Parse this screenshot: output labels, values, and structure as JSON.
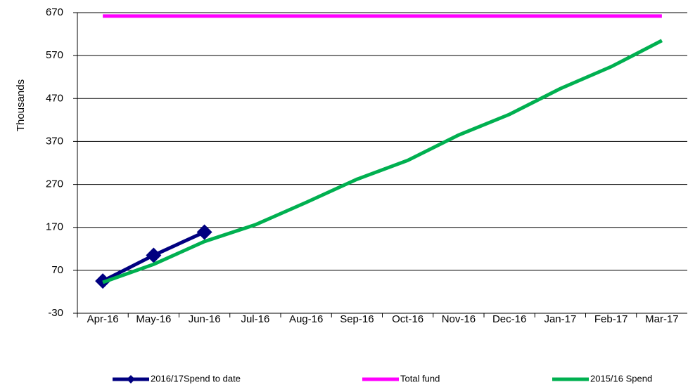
{
  "chart_data": {
    "type": "line",
    "ylabel": "Thousands",
    "categories": [
      "Apr-16",
      "May-16",
      "Jun-16",
      "Jul-16",
      "Aug-16",
      "Sep-16",
      "Oct-16",
      "Nov-16",
      "Dec-16",
      "Jan-17",
      "Feb-17",
      "Mar-17"
    ],
    "series": [
      {
        "name": "2016/17Spend to date",
        "color": "#000080",
        "marker": "diamond",
        "values": [
          45,
          105,
          159,
          null,
          null,
          null,
          null,
          null,
          null,
          null,
          null,
          null
        ]
      },
      {
        "name": "Total fund",
        "color": "#ff00ff",
        "values": [
          662,
          662,
          662,
          662,
          662,
          662,
          662,
          662,
          662,
          662,
          662,
          662
        ]
      },
      {
        "name": "2015/16 Spend",
        "color": "#00b050",
        "values": [
          42,
          84,
          137,
          176,
          228,
          282,
          326,
          385,
          433,
          493,
          544,
          605
        ]
      }
    ],
    "ylim": [
      -30,
      670
    ],
    "yticks": [
      -30,
      70,
      170,
      270,
      370,
      470,
      570,
      670
    ],
    "grid": true,
    "legend": "bottom"
  }
}
